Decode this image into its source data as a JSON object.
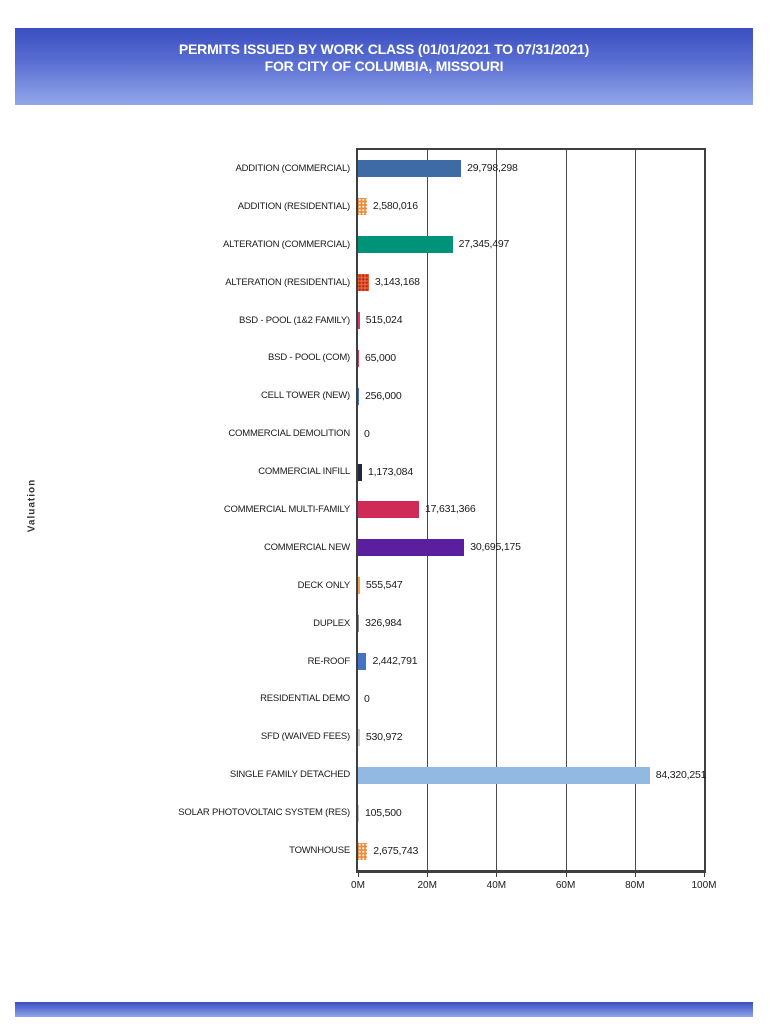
{
  "header": {
    "title_line1": "PERMITS ISSUED BY WORK CLASS (01/01/2021 TO 07/31/2021)",
    "title_line2": "FOR CITY OF COLUMBIA, MISSOURI",
    "banner_gradient_top": "#3A4EC0",
    "banner_gradient_bottom": "#93A6EA",
    "text_color": "#FFFFFF"
  },
  "chart_data": {
    "type": "bar",
    "orientation": "horizontal",
    "title": "PERMITS ISSUED BY WORK CLASS (01/01/2021 TO 07/31/2021) FOR CITY OF COLUMBIA, MISSOURI",
    "ylabel": "Valuation",
    "xlabel": "",
    "xlim": [
      0,
      100000000
    ],
    "x_tick_labels": [
      "0M",
      "20M",
      "40M",
      "60M",
      "80M",
      "100M"
    ],
    "x_tick_values": [
      0,
      20000000,
      40000000,
      60000000,
      80000000,
      100000000
    ],
    "grid": true,
    "legend": "none",
    "categories": [
      "ADDITION (COMMERCIAL)",
      "ADDITION (RESIDENTIAL)",
      "ALTERATION (COMMERCIAL)",
      "ALTERATION (RESIDENTIAL)",
      "BSD - POOL (1&2 FAMILY)",
      "BSD - POOL (COM)",
      "CELL TOWER (NEW)",
      "COMMERCIAL DEMOLITION",
      "COMMERCIAL INFILL",
      "COMMERCIAL MULTI-FAMILY",
      "COMMERCIAL NEW",
      "DECK ONLY",
      "DUPLEX",
      "RE-ROOF",
      "RESIDENTIAL DEMO",
      "SFD (WAIVED FEES)",
      "SINGLE FAMILY DETACHED",
      "SOLAR PHOTOVOLTAIC SYSTEM (RES)",
      "TOWNHOUSE"
    ],
    "values": [
      29798298,
      2580016,
      27345497,
      3143168,
      515024,
      65000,
      256000,
      0,
      1173084,
      17631366,
      30695175,
      555547,
      326984,
      2442791,
      0,
      530972,
      84320251,
      105500,
      2675743
    ],
    "value_labels": [
      "29,798,298",
      "2,580,016",
      "27,345,497",
      "3,143,168",
      "515,024",
      "65,000",
      "256,000",
      "0",
      "1,173,084",
      "17,631,366",
      "30,695,175",
      "555,547",
      "326,984",
      "2,442,791",
      "0",
      "530,972",
      "84,320,251",
      "105,500",
      "2,675,743"
    ],
    "bar_colors": [
      "#3E6BA5",
      "#ED8B3B",
      "#009377",
      "#E9632F",
      "#C9415E",
      "#C9415E",
      "#4472C4",
      "#777777",
      "#26263E",
      "#D02B56",
      "#5B1E9E",
      "#F5A14B",
      "#8A8A8A",
      "#4472C4",
      "#777777",
      "#C9C9C9",
      "#92B9E2",
      "#C9C9C9",
      "#ED8B3B"
    ],
    "bar_patterns": [
      null,
      "white-dots",
      null,
      "red-dots",
      null,
      null,
      null,
      null,
      null,
      null,
      null,
      null,
      null,
      null,
      null,
      null,
      null,
      null,
      "white-dots"
    ]
  }
}
